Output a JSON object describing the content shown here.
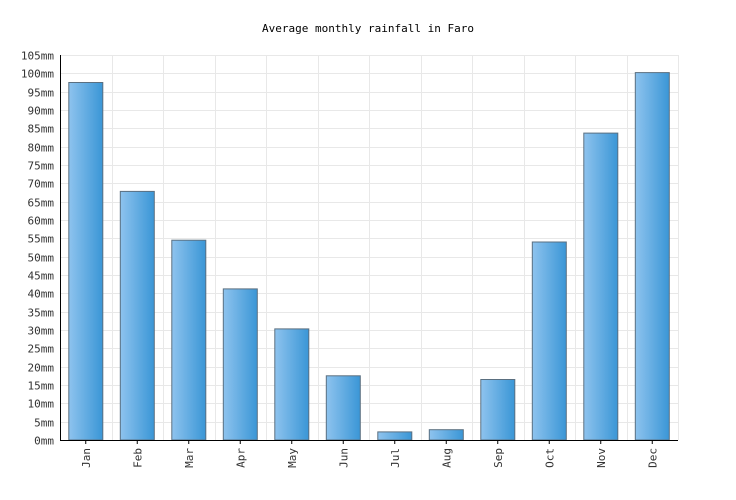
{
  "chart_data": {
    "type": "bar",
    "title": "Average monthly rainfall in Faro",
    "xlabel": "",
    "ylabel": "",
    "categories": [
      "Jan",
      "Feb",
      "Mar",
      "Apr",
      "May",
      "Jun",
      "Jul",
      "Aug",
      "Sep",
      "Oct",
      "Nov",
      "Dec"
    ],
    "series": [
      {
        "values": [
          97.5,
          67.8,
          54.5,
          41.2,
          30.3,
          17.5,
          2.2,
          2.8,
          16.5,
          54.0,
          83.7,
          100.2
        ]
      }
    ],
    "ylim": [
      0,
      105
    ],
    "y_ticks": [
      0,
      5,
      10,
      15,
      20,
      25,
      30,
      35,
      40,
      45,
      50,
      55,
      60,
      65,
      70,
      75,
      80,
      85,
      90,
      95,
      100,
      105
    ],
    "y_tick_suffix": "mm",
    "grid": true,
    "bar_color_light": "#8ec3ee",
    "bar_color_dark": "#3a96d6"
  }
}
